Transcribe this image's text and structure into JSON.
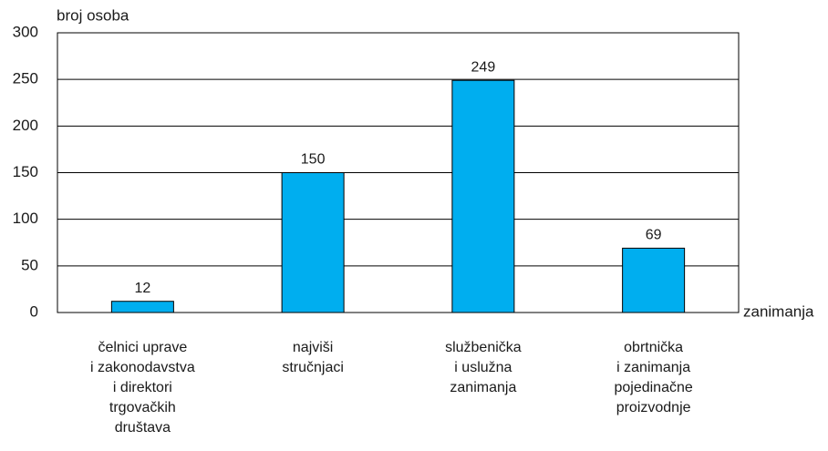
{
  "chart_data": {
    "type": "bar",
    "y_label": "broj osoba",
    "x_label": "zanimanja",
    "categories": [
      [
        "čelnici uprave",
        "i zakonodavstva",
        "i direktori",
        "trgovačkih",
        "društava"
      ],
      [
        "najviši",
        "stručnjaci"
      ],
      [
        "službenička",
        "i uslužna",
        "zanimanja"
      ],
      [
        "obrtnička",
        "i zanimanja",
        "pojedinačne",
        "proizvodnje"
      ]
    ],
    "values": [
      12,
      150,
      249,
      69
    ],
    "color": "#00aeef",
    "ylim": [
      0,
      300
    ],
    "yticks": [
      0,
      50,
      100,
      150,
      200,
      250,
      300
    ],
    "grid": true
  }
}
